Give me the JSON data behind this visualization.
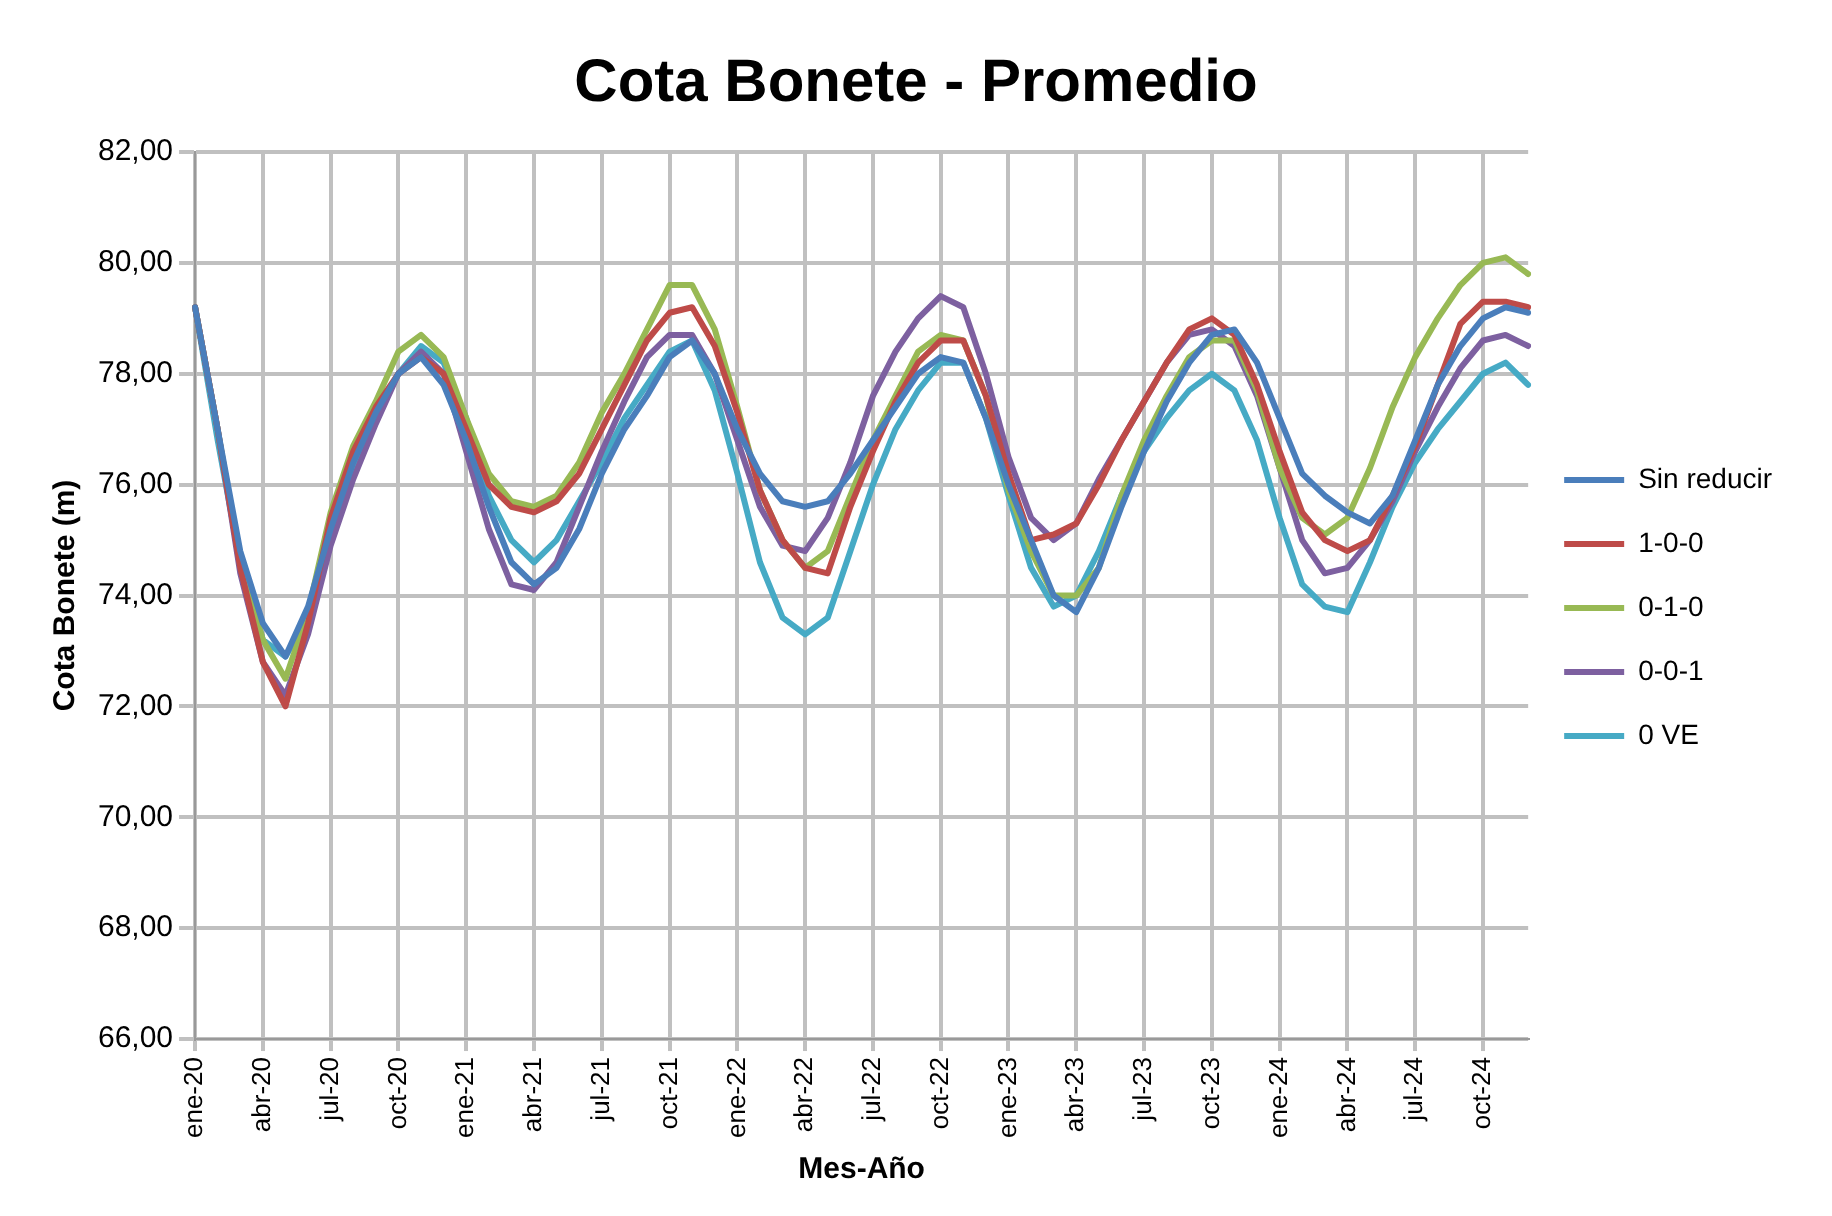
{
  "chart_data": {
    "type": "line",
    "title": "Cota Bonete - Promedio",
    "xlabel": "Mes-Año",
    "ylabel": "Cota Bonete (m)",
    "categories": [
      "ene-20",
      null,
      null,
      "abr-20",
      null,
      null,
      "jul-20",
      null,
      null,
      "oct-20",
      null,
      null,
      "ene-21",
      null,
      null,
      "abr-21",
      null,
      null,
      "jul-21",
      null,
      null,
      "oct-21",
      null,
      null,
      "ene-22",
      null,
      null,
      "abr-22",
      null,
      null,
      "jul-22",
      null,
      null,
      "oct-22",
      null,
      null,
      "ene-23",
      null,
      null,
      "abr-23",
      null,
      null,
      "jul-23",
      null,
      null,
      "oct-23",
      null,
      null,
      "ene-24",
      null,
      null,
      "abr-24",
      null,
      null,
      "jul-24",
      null,
      null,
      "oct-24",
      null,
      null
    ],
    "series": [
      {
        "name": "Sin reducir",
        "color": "#4a7ebb",
        "values": [
          79.2,
          77.0,
          74.8,
          73.5,
          72.9,
          73.8,
          75.2,
          76.4,
          77.3,
          78.0,
          78.3,
          77.8,
          76.8,
          75.6,
          74.6,
          74.2,
          74.5,
          75.2,
          76.2,
          77.0,
          77.6,
          78.3,
          78.6,
          78.0,
          77.0,
          76.2,
          75.7,
          75.6,
          75.7,
          76.2,
          76.8,
          77.4,
          78.0,
          78.3,
          78.2,
          77.2,
          76.0,
          75.0,
          74.0,
          73.7,
          74.5,
          75.6,
          76.6,
          77.5,
          78.2,
          78.7,
          78.8,
          78.2,
          77.2,
          76.2,
          75.8,
          75.5,
          75.3,
          75.8,
          76.8,
          77.8,
          78.5,
          79.0,
          79.2,
          79.1
        ]
      },
      {
        "name": "1-0-0",
        "color": "#be4b48",
        "values": [
          79.2,
          77.0,
          74.5,
          72.8,
          72.0,
          73.5,
          75.4,
          76.6,
          77.4,
          78.0,
          78.3,
          78.0,
          77.0,
          76.0,
          75.6,
          75.5,
          75.7,
          76.2,
          77.0,
          77.8,
          78.6,
          79.1,
          79.2,
          78.5,
          77.3,
          75.9,
          75.0,
          74.5,
          74.4,
          75.6,
          76.6,
          77.5,
          78.2,
          78.6,
          78.6,
          77.6,
          76.2,
          75.0,
          75.1,
          75.3,
          76.0,
          76.8,
          77.5,
          78.2,
          78.8,
          79.0,
          78.7,
          77.8,
          76.6,
          75.5,
          75.0,
          74.8,
          75.0,
          75.8,
          76.7,
          77.8,
          78.9,
          79.3,
          79.3,
          79.2
        ]
      },
      {
        "name": "0-1-0",
        "color": "#98b954",
        "values": [
          79.2,
          77.0,
          74.6,
          73.2,
          72.5,
          73.7,
          75.5,
          76.7,
          77.5,
          78.4,
          78.7,
          78.3,
          77.2,
          76.2,
          75.7,
          75.6,
          75.8,
          76.4,
          77.3,
          78.0,
          78.8,
          79.6,
          79.6,
          78.8,
          77.4,
          75.9,
          75.0,
          74.5,
          74.8,
          75.8,
          76.8,
          77.6,
          78.4,
          78.7,
          78.6,
          77.6,
          75.9,
          74.8,
          74.0,
          74.0,
          74.5,
          75.8,
          76.8,
          77.6,
          78.3,
          78.6,
          78.6,
          77.7,
          76.3,
          75.4,
          75.1,
          75.4,
          76.3,
          77.4,
          78.3,
          79.0,
          79.6,
          80.0,
          80.1,
          79.8
        ]
      },
      {
        "name": "0-0-1",
        "color": "#7d60a0",
        "values": [
          79.2,
          77.0,
          74.4,
          72.8,
          72.2,
          73.3,
          74.9,
          76.1,
          77.1,
          78.0,
          78.4,
          78.0,
          76.6,
          75.2,
          74.2,
          74.1,
          74.6,
          75.6,
          76.6,
          77.5,
          78.3,
          78.7,
          78.7,
          78.0,
          76.8,
          75.6,
          74.9,
          74.8,
          75.4,
          76.4,
          77.6,
          78.4,
          79.0,
          79.4,
          79.2,
          78.0,
          76.5,
          75.4,
          75.0,
          75.3,
          76.1,
          76.8,
          77.5,
          78.2,
          78.7,
          78.8,
          78.5,
          77.6,
          76.3,
          75.0,
          74.4,
          74.5,
          75.0,
          75.7,
          76.6,
          77.4,
          78.1,
          78.6,
          78.7,
          78.5
        ]
      },
      {
        "name": "0 VE",
        "color": "#46aac5",
        "values": [
          79.2,
          76.8,
          74.6,
          73.2,
          72.9,
          73.6,
          75.0,
          76.3,
          77.2,
          78.0,
          78.5,
          78.2,
          77.2,
          75.8,
          75.0,
          74.6,
          75.0,
          75.7,
          76.4,
          77.2,
          77.8,
          78.4,
          78.6,
          77.7,
          76.2,
          74.6,
          73.6,
          73.3,
          73.6,
          74.8,
          76.0,
          77.0,
          77.7,
          78.2,
          78.2,
          77.2,
          75.8,
          74.5,
          73.8,
          74.0,
          74.8,
          75.8,
          76.6,
          77.2,
          77.7,
          78.0,
          77.7,
          76.8,
          75.4,
          74.2,
          73.8,
          73.7,
          74.6,
          75.6,
          76.4,
          77.0,
          77.5,
          78.0,
          78.2,
          77.8
        ]
      }
    ],
    "ylim": [
      66,
      82
    ],
    "yticks": [
      {
        "value": 66,
        "label": "66,00"
      },
      {
        "value": 68,
        "label": "68,00"
      },
      {
        "value": 70,
        "label": "70,00"
      },
      {
        "value": 72,
        "label": "72,00"
      },
      {
        "value": 74,
        "label": "74,00"
      },
      {
        "value": 76,
        "label": "76,00"
      },
      {
        "value": 78,
        "label": "78,00"
      },
      {
        "value": 80,
        "label": "80,00"
      },
      {
        "value": 82,
        "label": "82,00"
      }
    ],
    "grid": true,
    "legend": "right",
    "marker": "none",
    "line_style": "solid"
  }
}
